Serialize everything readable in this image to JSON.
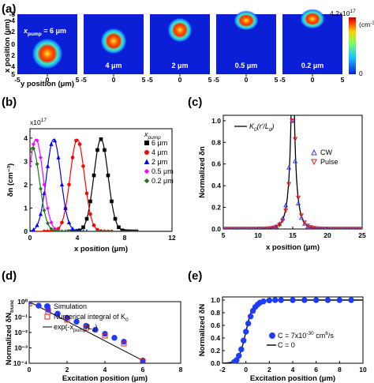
{
  "panel_labels": {
    "a": "(a)",
    "b": "(b)",
    "c": "(c)",
    "d": "(d)",
    "e": "(e)"
  },
  "panel_a": {
    "xlabel": "y position (μm)",
    "ylabel": "x position (μm)",
    "xticks": [
      "-5",
      "0",
      "5"
    ],
    "yticks": [
      "-5",
      "-4",
      "-2",
      "0",
      "2",
      "4",
      "5"
    ],
    "first_label": "x",
    "first_label_sub": "pump",
    "first_label_rest": " = 6 μm",
    "labels": [
      "4 μm",
      "2 μm",
      "0.5 μm",
      "0.2 μm"
    ],
    "colorbar_max": "4.2x10",
    "colorbar_max_exp": "17",
    "colorbar_unit": "(cm",
    "colorbar_unit_exp": "-3",
    "colorbar_unit_close": ")",
    "colorbar_min": "0",
    "colors": {
      "bg": "#0a1fd6",
      "mid": "#21c8ff",
      "hot": "#ff3a00",
      "core": "#ffef30"
    }
  },
  "chart_data": [
    {
      "panel": "b",
      "type": "line",
      "xlabel": "x position (μm)",
      "ylabel": "δn (cm⁻³)",
      "y_multiplier": "x10",
      "y_multiplier_exp": "17",
      "xlim": [
        0,
        12
      ],
      "ylim": [
        0,
        4.4
      ],
      "xticks": [
        0,
        4,
        8,
        12
      ],
      "yticks": [
        0,
        1,
        2,
        3,
        4
      ],
      "legend_title": "x",
      "legend_title_sub": "pump",
      "series": [
        {
          "name": "6 μm",
          "color": "#000000",
          "marker": "square",
          "center": 6,
          "peak": 3.95
        },
        {
          "name": "4 μm",
          "color": "#ff0000",
          "marker": "circle",
          "center": 4,
          "peak": 3.95
        },
        {
          "name": "2 μm",
          "color": "#0000ff",
          "marker": "triangle",
          "center": 2,
          "peak": 3.95
        },
        {
          "name": "0.5 μm",
          "color": "#ff00ff",
          "marker": "diamond",
          "center": 0.5,
          "peak": 3.95
        },
        {
          "name": "0.2 μm",
          "color": "#1b7a1b",
          "marker": "diamond",
          "center": 0.2,
          "peak": 3.6
        }
      ]
    },
    {
      "panel": "c",
      "type": "line",
      "xlabel": "x position (μm)",
      "ylabel": "Normalized δn",
      "xlim": [
        5,
        25
      ],
      "ylim": [
        0,
        1.05
      ],
      "xticks": [
        5,
        10,
        15,
        20,
        25
      ],
      "yticks": [
        0,
        0.2,
        0.4,
        0.6,
        0.8,
        1.0
      ],
      "center": 15,
      "fit_label": "K",
      "fit_label_sub": "0",
      "fit_label_rest": "(r'/L",
      "fit_label_sub2": "d",
      "fit_label_close": ")",
      "series": [
        {
          "name": "CW",
          "color": "#3a3aff",
          "marker": "triangle-up"
        },
        {
          "name": "Pulse",
          "color": "#e02020",
          "marker": "triangle-down"
        }
      ]
    },
    {
      "panel": "d",
      "type": "scatter",
      "xlabel": "Excitation position (μm)",
      "ylabel": "Normalized δN",
      "ylabel_sub": "trunc",
      "yscale": "log",
      "xlim": [
        0,
        8
      ],
      "ylim": [
        0.0001,
        1
      ],
      "xticks": [
        0,
        2,
        4,
        6,
        8
      ],
      "yticks": [
        "10⁰",
        "10⁻¹",
        "10⁻²",
        "10⁻³",
        "10⁻⁴"
      ],
      "simulation": {
        "name": "Simulation",
        "color": "#1e3cff",
        "x": [
          0,
          0.5,
          1,
          1.5,
          2,
          2.5,
          3,
          3.5,
          4,
          4.5,
          5,
          6
        ],
        "y": [
          1.0,
          0.55,
          0.3,
          0.165,
          0.09,
          0.05,
          0.027,
          0.015,
          0.0082,
          0.0045,
          0.0025,
          0.00015
        ]
      },
      "numerical": {
        "name": "Numerical integral of K",
        "name_sub": "0",
        "color": "#e02020",
        "x": [
          0,
          1,
          2,
          3,
          4,
          5,
          6
        ],
        "y": [
          0.75,
          0.22,
          0.066,
          0.02,
          0.0062,
          0.0019,
          0.00013
        ]
      },
      "fit": {
        "name_pre": "exp(-x",
        "name_sub": "pump",
        "name_mid": "/L",
        "name_sub2": "d",
        "name_post": ")",
        "color": "#000000",
        "x": [
          0,
          6
        ],
        "y": [
          1.0,
          0.00015
        ]
      }
    },
    {
      "panel": "e",
      "type": "scatter",
      "xlabel": "Excitation position (μm)",
      "ylabel": "Normalized δN",
      "xlim": [
        -2,
        10
      ],
      "ylim": [
        0,
        1.05
      ],
      "xticks": [
        -2,
        0,
        2,
        4,
        6,
        8,
        10
      ],
      "yticks": [
        0,
        0.2,
        0.4,
        0.6,
        0.8,
        1.0
      ],
      "points": {
        "name_pre": "C = 7x10",
        "name_exp": "-30",
        "name_post": " cm",
        "name_exp2": "6",
        "name_end": "/s",
        "color": "#1e3cff",
        "x": [
          -1,
          -0.8,
          -0.6,
          -0.4,
          -0.2,
          0,
          0.2,
          0.4,
          0.6,
          0.8,
          1,
          1.2,
          1.5,
          2,
          2.5,
          3,
          4,
          5,
          6,
          7,
          8,
          9
        ],
        "y": [
          0.02,
          0.05,
          0.12,
          0.22,
          0.36,
          0.5,
          0.63,
          0.74,
          0.83,
          0.89,
          0.93,
          0.96,
          0.98,
          0.995,
          1,
          1,
          1,
          1,
          1,
          1,
          1,
          1
        ]
      },
      "curve": {
        "name": "C = 0",
        "color": "#000000"
      }
    }
  ]
}
